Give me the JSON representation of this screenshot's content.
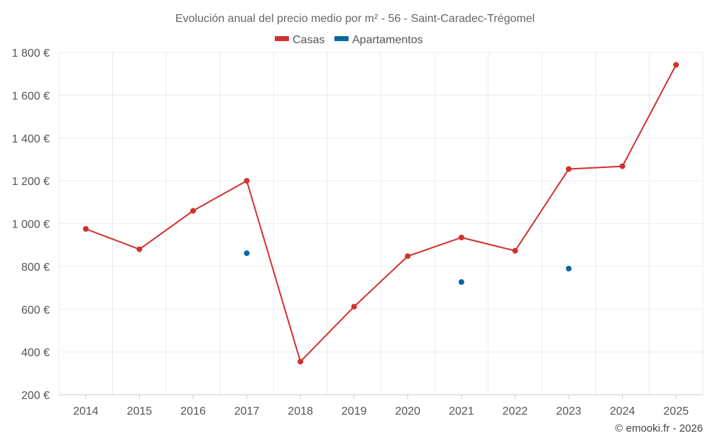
{
  "chart_data": {
    "type": "line",
    "title": "Evolución anual del precio medio por m² - 56 - Saint-Caradec-Trégomel",
    "categories": [
      "2014",
      "2015",
      "2016",
      "2017",
      "2018",
      "2019",
      "2020",
      "2021",
      "2022",
      "2023",
      "2024",
      "2025"
    ],
    "series": [
      {
        "name": "Casas",
        "color": "#d32f2f",
        "values": [
          975,
          880,
          1060,
          1200,
          355,
          612,
          848,
          935,
          873,
          1255,
          1268,
          1742
        ]
      },
      {
        "name": "Apartamentos",
        "color": "#0a67a3",
        "values": [
          null,
          null,
          null,
          862,
          null,
          null,
          null,
          727,
          null,
          790,
          null,
          null
        ]
      }
    ],
    "ylim": [
      200,
      1800
    ],
    "yticks": [
      200,
      400,
      600,
      800,
      1000,
      1200,
      1400,
      1600,
      1800
    ],
    "ytick_labels": [
      "200 €",
      "400 €",
      "600 €",
      "800 €",
      "1 000 €",
      "1 200 €",
      "1 400 €",
      "1 600 €",
      "1 800 €"
    ],
    "grid": true,
    "legend_position": "top-center",
    "credit": "© emooki.fr - 2026"
  }
}
